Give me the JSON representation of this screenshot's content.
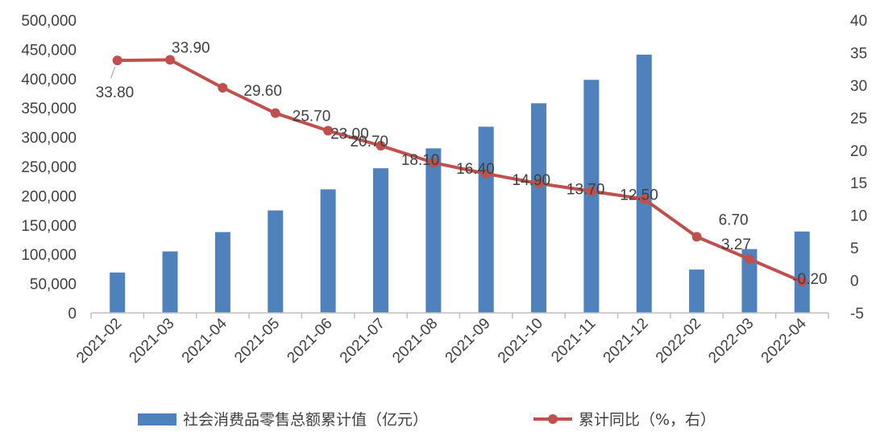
{
  "chart_data": {
    "type": "bar+line",
    "categories": [
      "2021-02",
      "2021-03",
      "2021-04",
      "2021-05",
      "2021-06",
      "2021-07",
      "2021-08",
      "2021-09",
      "2021-10",
      "2021-11",
      "2021-12",
      "2022-02",
      "2022-03",
      "2022-04"
    ],
    "series": [
      {
        "name": "社会消费品零售总额累计值（亿元）",
        "type": "bar",
        "axis": "left",
        "color": "#4F81BD",
        "values": [
          69000,
          105000,
          138000,
          175000,
          211000,
          247000,
          281000,
          318000,
          358000,
          398000,
          441000,
          74000,
          109000,
          139000
        ]
      },
      {
        "name": "累计同比（%，右）",
        "type": "line",
        "axis": "right",
        "color": "#C0504D",
        "values": [
          33.8,
          33.9,
          29.6,
          25.7,
          23.0,
          20.7,
          18.1,
          16.4,
          14.9,
          13.7,
          12.5,
          6.7,
          3.27,
          -0.2
        ],
        "labels": [
          "33.80",
          "33.90",
          "29.60",
          "25.70",
          "23.00",
          "20.70",
          "18.10",
          "16.40",
          "14.90",
          "13.70",
          "12.50",
          "6.70",
          "3.27",
          "-0.20"
        ]
      }
    ],
    "y_left": {
      "min": 0,
      "max": 500000,
      "ticks": [
        "0",
        "50,000",
        "100,000",
        "150,000",
        "200,000",
        "250,000",
        "300,000",
        "350,000",
        "400,000",
        "450,000",
        "500,000"
      ]
    },
    "y_right": {
      "min": -5,
      "max": 40,
      "ticks": [
        "-5",
        "0",
        "5",
        "10",
        "15",
        "20",
        "25",
        "30",
        "35",
        "40"
      ]
    },
    "grid": false,
    "legend_position": "bottom",
    "title": "",
    "xlabel": "",
    "ylabel": ""
  }
}
